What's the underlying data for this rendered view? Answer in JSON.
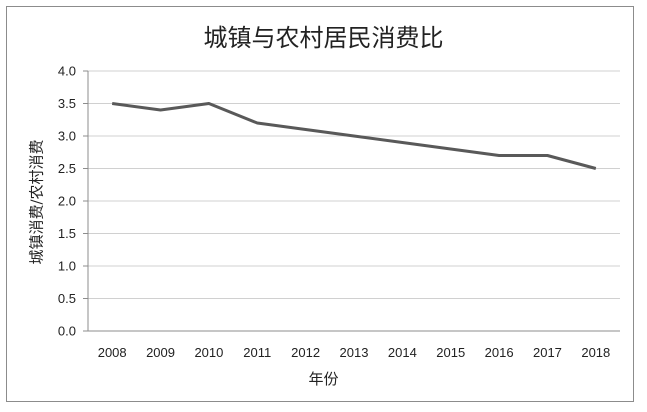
{
  "chart_data": {
    "type": "line",
    "title": "城镇与农村居民消费比",
    "xlabel": "年份",
    "ylabel": "城镇消费/农村消费",
    "categories": [
      "2008",
      "2009",
      "2010",
      "2011",
      "2012",
      "2013",
      "2014",
      "2015",
      "2016",
      "2017",
      "2018"
    ],
    "values": [
      3.5,
      3.4,
      3.5,
      3.2,
      3.1,
      3.0,
      2.9,
      2.8,
      2.7,
      2.7,
      2.5
    ],
    "ylim": [
      0,
      4
    ],
    "yticks": [
      "0.0",
      "0.5",
      "1.0",
      "1.5",
      "2.0",
      "2.5",
      "3.0",
      "3.5",
      "4.0"
    ],
    "grid": true,
    "line_color": "#595959",
    "grid_color": "#d0d0d0"
  }
}
